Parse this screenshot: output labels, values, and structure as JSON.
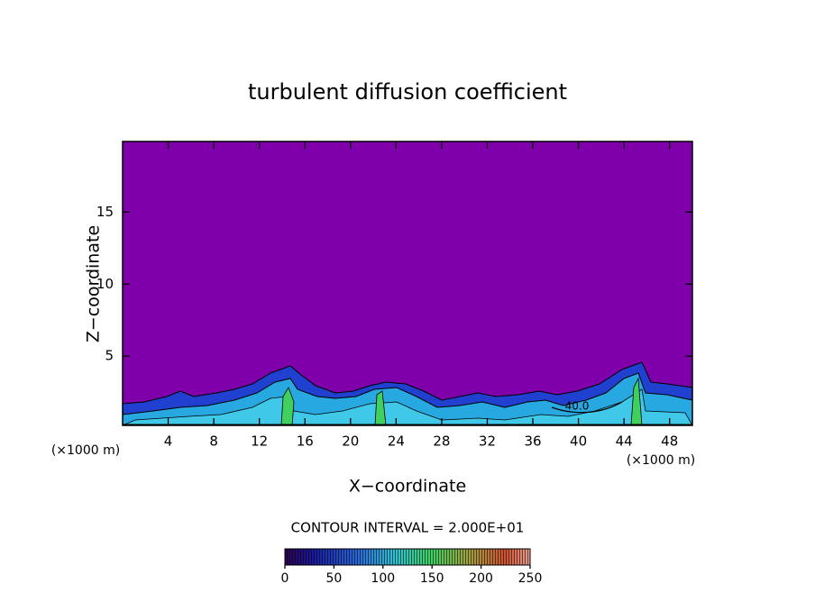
{
  "chart_data": {
    "type": "contour",
    "title": "turbulent diffusion coefficient",
    "xlabel": "X−coordinate",
    "ylabel": "Z−coordinate",
    "x_unit": "(×1000 m)",
    "y_unit": "(×1000 m)",
    "xlim": [
      0,
      50
    ],
    "ylim": [
      0.2,
      19.9
    ],
    "xticks": [
      4,
      8,
      12,
      16,
      20,
      24,
      28,
      32,
      36,
      40,
      44,
      48
    ],
    "yticks": [
      5,
      10,
      15
    ],
    "contour_label": "40.0",
    "contour_interval": "CONTOUR INTERVAL = 2.000E+01",
    "background_color": "#7f00aa",
    "colorbar": {
      "lim": [
        0,
        250
      ],
      "ticks": [
        0,
        50,
        100,
        150,
        200,
        250
      ]
    }
  }
}
